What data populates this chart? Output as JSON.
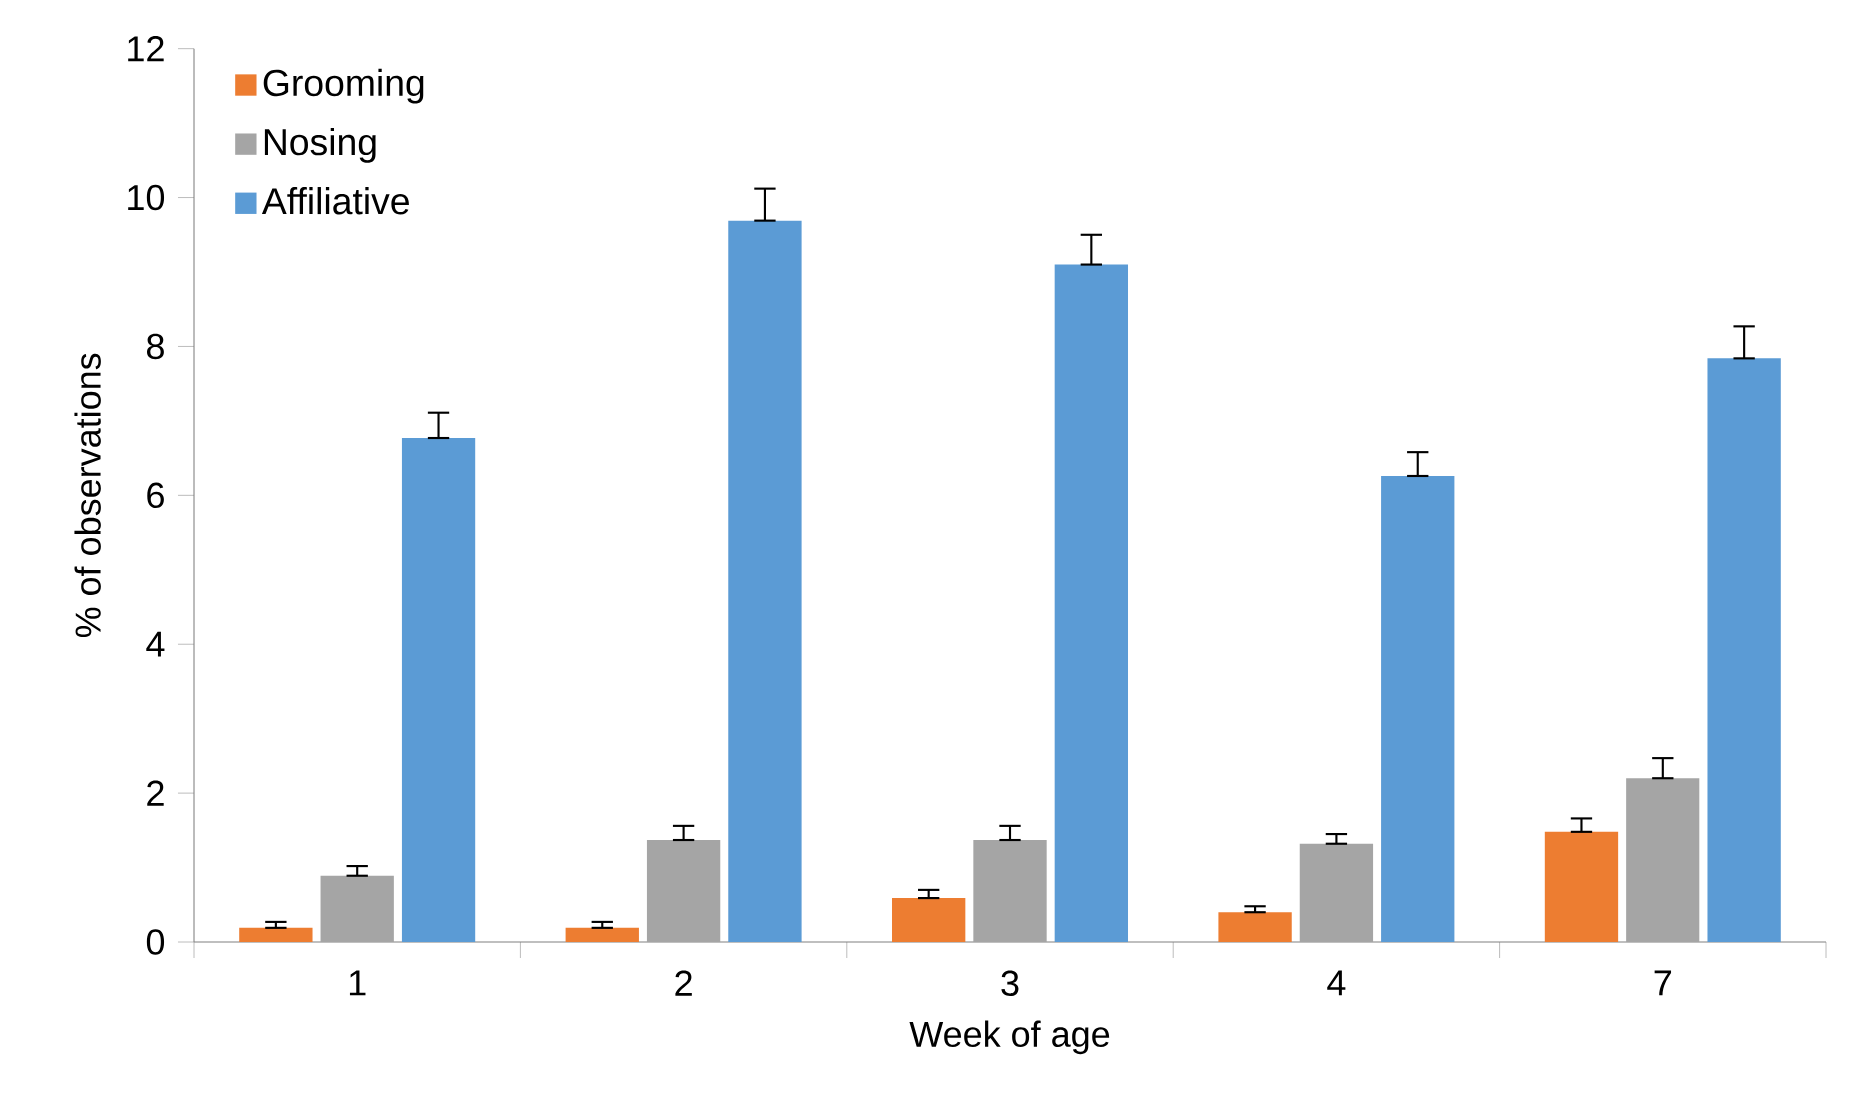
{
  "chart_data": {
    "type": "bar",
    "xlabel": "Week of age",
    "ylabel": "% of observations",
    "categories": [
      "1",
      "2",
      "3",
      "4",
      "7"
    ],
    "series": [
      {
        "name": "Grooming",
        "color": "#ed7d31",
        "values": [
          0.19,
          0.19,
          0.59,
          0.4,
          1.48
        ],
        "errors": [
          [
            0.19,
            0.27
          ],
          [
            0.19,
            0.27
          ],
          [
            0.59,
            0.7
          ],
          [
            0.4,
            0.48
          ],
          [
            1.48,
            1.66
          ]
        ]
      },
      {
        "name": "Nosing",
        "color": "#a5a5a5",
        "values": [
          0.89,
          1.37,
          1.37,
          1.32,
          2.2
        ],
        "errors": [
          [
            0.89,
            1.02
          ],
          [
            1.37,
            1.56
          ],
          [
            1.37,
            1.56
          ],
          [
            1.32,
            1.45
          ],
          [
            2.2,
            2.47
          ]
        ]
      },
      {
        "name": "Affiliative",
        "color": "#5b9bd5",
        "values": [
          6.77,
          9.69,
          9.1,
          6.26,
          7.84
        ],
        "errors": [
          [
            6.77,
            7.11
          ],
          [
            9.69,
            10.12
          ],
          [
            9.1,
            9.5
          ],
          [
            6.26,
            6.58
          ],
          [
            7.84,
            8.27
          ]
        ]
      }
    ],
    "ylim": [
      0,
      12
    ],
    "yticks": [
      0,
      2,
      4,
      6,
      8,
      10,
      12
    ],
    "grid": false,
    "legend": "top left"
  }
}
